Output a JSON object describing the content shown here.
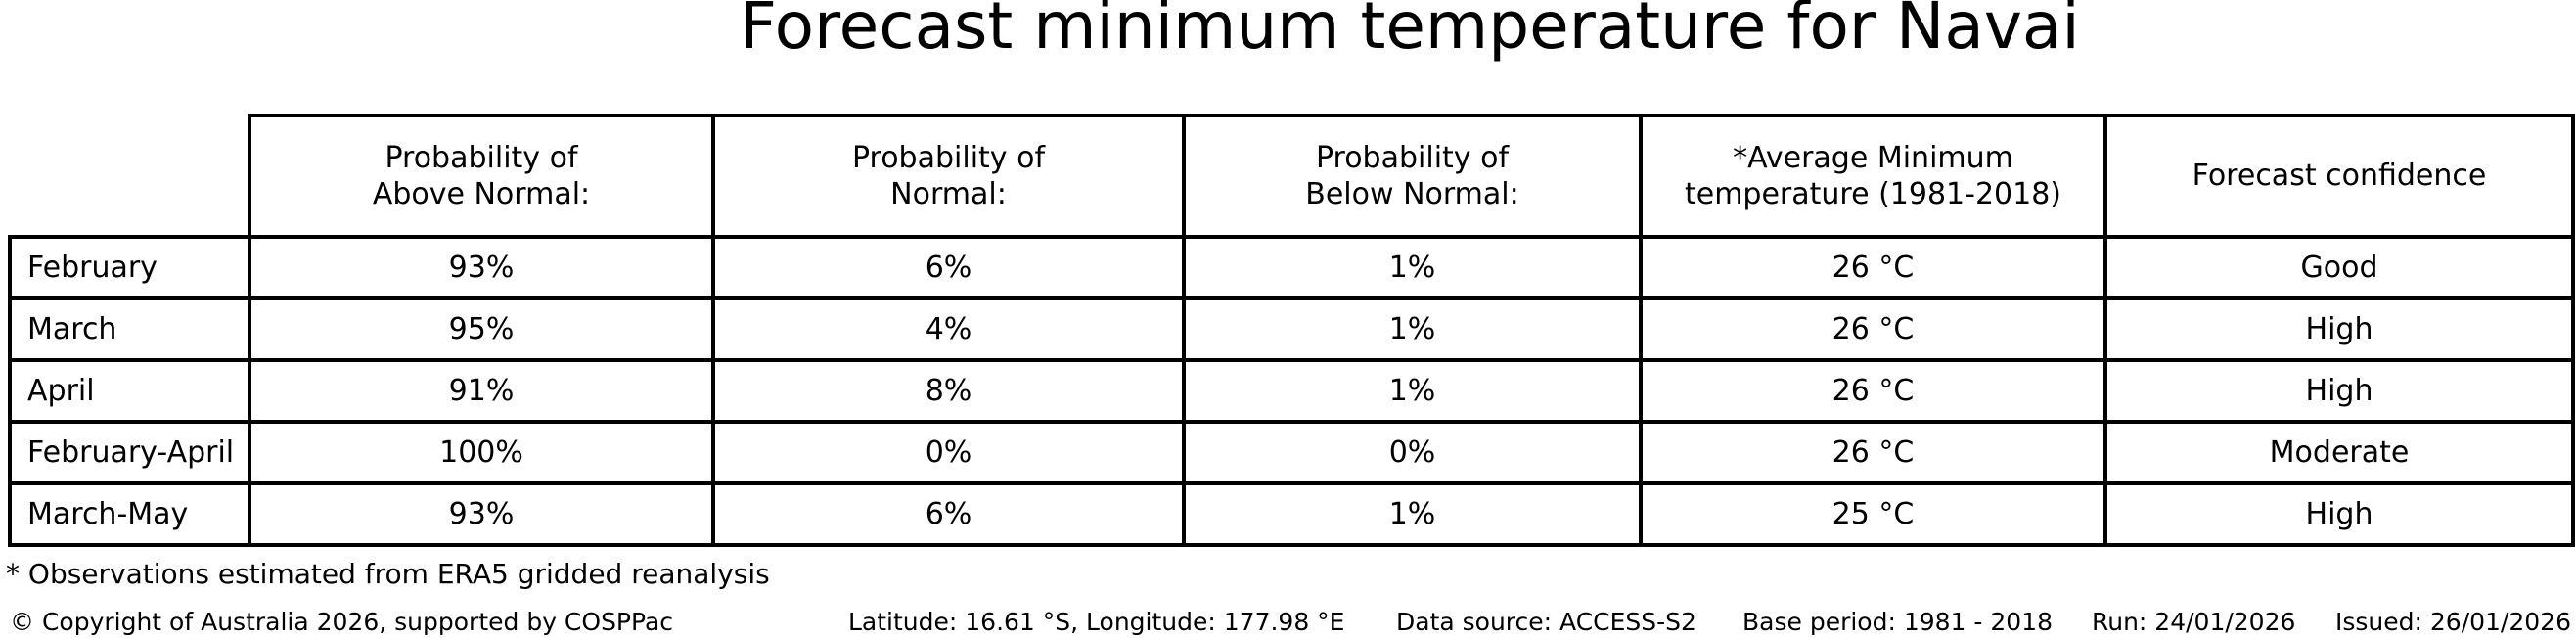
{
  "chart_data": {
    "type": "table",
    "title": "Forecast minimum temperature for Navai",
    "columns": [
      "Probability of\nAbove Normal:",
      "Probability of\nNormal:",
      "Probability of\nBelow Normal:",
      "*Average Minimum\ntemperature (1981-2018)",
      "Forecast confidence"
    ],
    "row_labels": [
      "February",
      "March",
      "April",
      "February-April",
      "March-May"
    ],
    "rows": [
      [
        "93%",
        "6%",
        "1%",
        "26 °C",
        "Good"
      ],
      [
        "95%",
        "4%",
        "1%",
        "26 °C",
        "High"
      ],
      [
        "91%",
        "8%",
        "1%",
        "26 °C",
        "High"
      ],
      [
        "100%",
        "0%",
        "0%",
        "26 °C",
        "Moderate"
      ],
      [
        "93%",
        "6%",
        "1%",
        "25 °C",
        "High"
      ]
    ],
    "layout": {
      "grid": "on",
      "header_position": "top",
      "row_label_column": "left"
    }
  },
  "footnote": "* Observations estimated from ERA5 gridded reanalysis",
  "footer": {
    "copyright": "© Copyright of Australia 2026, supported by COSPPac",
    "location": "Latitude: 16.61 °S, Longitude: 177.98 °E",
    "data_source": "Data source: ACCESS-S2",
    "base_period": "Base period: 1981 - 2018",
    "run": "Run: 24/01/2026",
    "issued": "Issued: 26/01/2026"
  },
  "colors": {
    "background": "#ffffff",
    "text": "#000000",
    "table_border": "#000000"
  }
}
